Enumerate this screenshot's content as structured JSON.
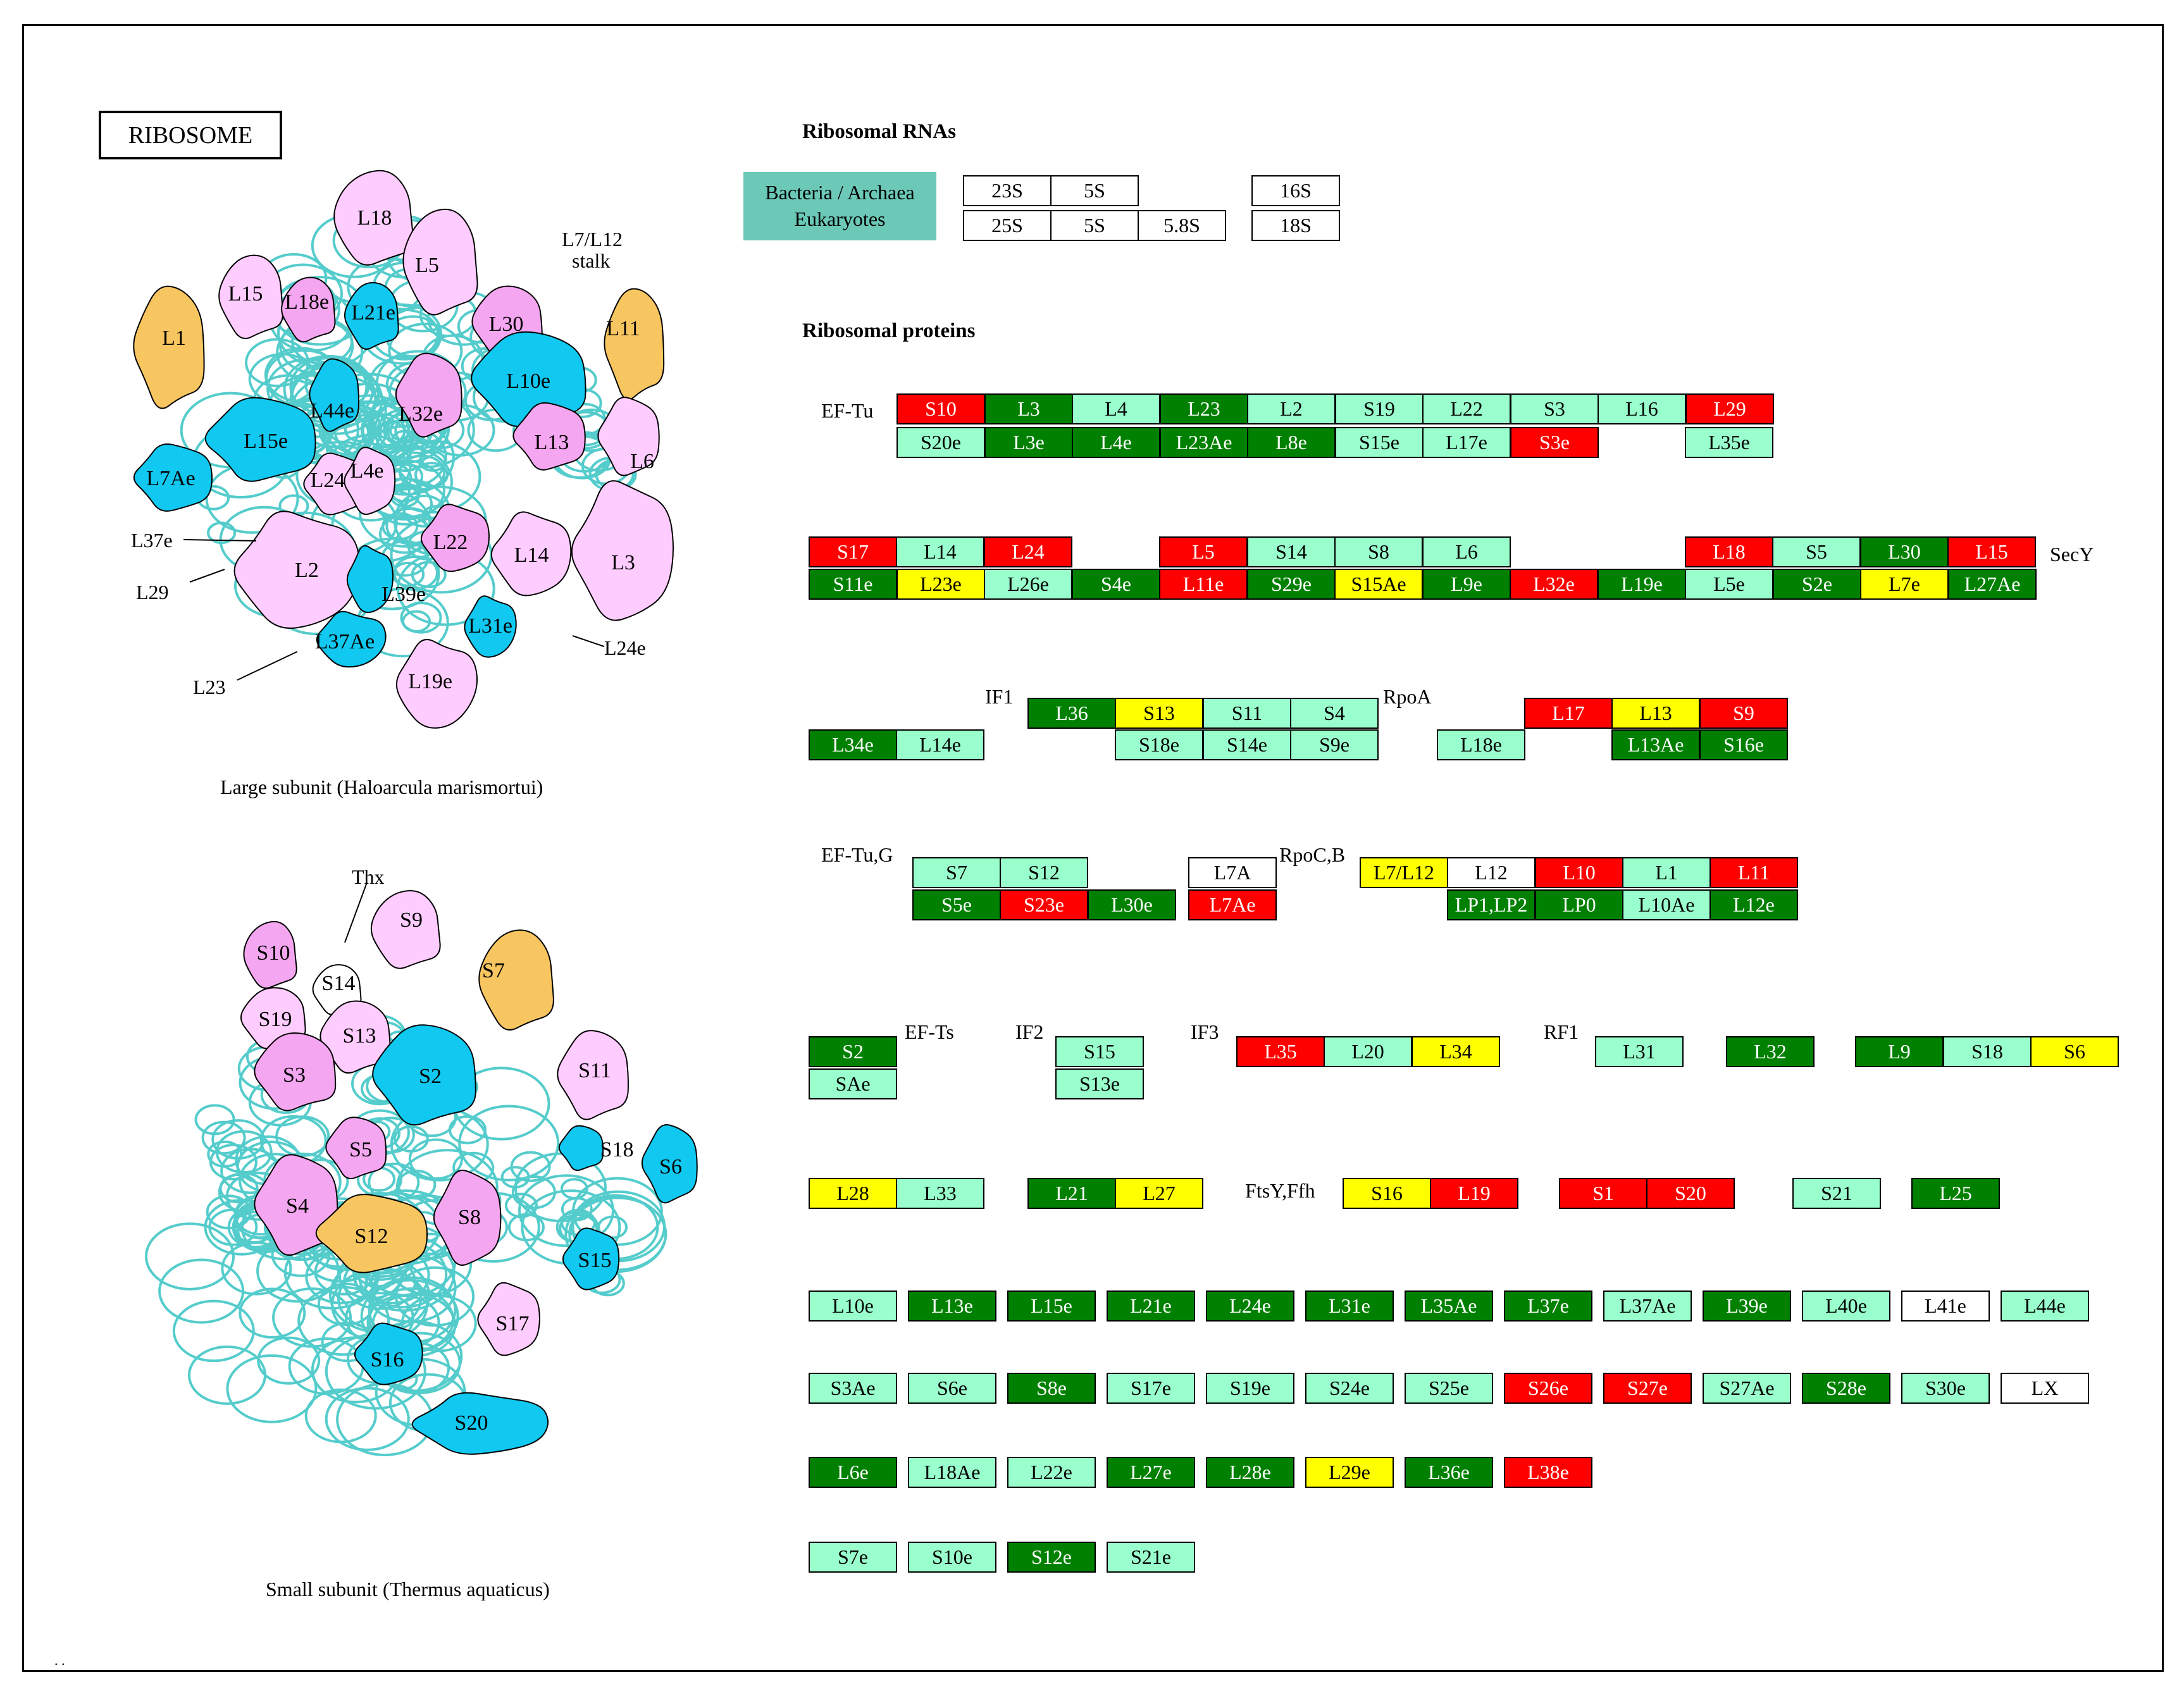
{
  "title": "RIBOSOME",
  "colors": {
    "red": "#ff0000",
    "dark": "#008000",
    "light": "#99ffcc",
    "yellow": "#ffff00",
    "white": "#ffffff",
    "legend": "#6cc9b8",
    "pink": "#ffccff",
    "magenta": "#f5a6f0",
    "blue": "#10c8f0",
    "orange": "#f8c660",
    "thread": "#55cccc"
  },
  "sections": {
    "rna_heading": "Ribosomal RNAs",
    "protein_heading": "Ribosomal proteins"
  },
  "legend": {
    "line1": "Bacteria / Archaea",
    "line2": "Eukaryotes"
  },
  "rna": {
    "bac": [
      {
        "label": "23S",
        "color": "white"
      },
      {
        "label": "5S",
        "color": "white"
      },
      {
        "label": "16S",
        "color": "white"
      }
    ],
    "euk": [
      {
        "label": "25S",
        "color": "white"
      },
      {
        "label": "5S",
        "color": "white"
      },
      {
        "label": "5.8S",
        "color": "white"
      },
      {
        "label": "18S",
        "color": "white"
      }
    ]
  },
  "labels": {
    "ef_tu": "EF-Tu",
    "secy": "SecY",
    "if1": "IF1",
    "rpoa": "RpoA",
    "ef_tu_g": "EF-Tu,G",
    "rpoc_b": "RpoC,B",
    "ef_ts": "EF-Ts",
    "if2": "IF2",
    "if3": "IF3",
    "rf1": "RF1",
    "ftsy_ffh": "FtsY,Ffh",
    "dots": ". ."
  },
  "rows": {
    "r1_top": [
      {
        "label": "S10",
        "color": "red"
      },
      {
        "label": "L3",
        "color": "dark"
      },
      {
        "label": "L4",
        "color": "light"
      },
      {
        "label": "L23",
        "color": "dark"
      },
      {
        "label": "L2",
        "color": "light"
      },
      {
        "label": "S19",
        "color": "light"
      },
      {
        "label": "L22",
        "color": "light"
      },
      {
        "label": "S3",
        "color": "light"
      },
      {
        "label": "L16",
        "color": "light"
      },
      {
        "label": "L29",
        "color": "red"
      }
    ],
    "r1_bot": [
      {
        "label": "S20e",
        "color": "light"
      },
      {
        "label": "L3e",
        "color": "dark"
      },
      {
        "label": "L4e",
        "color": "dark"
      },
      {
        "label": "L23Ae",
        "color": "dark"
      },
      {
        "label": "L8e",
        "color": "dark"
      },
      {
        "label": "S15e",
        "color": "light"
      },
      {
        "label": "L17e",
        "color": "light"
      },
      {
        "label": "S3e",
        "color": "red"
      },
      {
        "label": "L35e",
        "color": "light"
      }
    ],
    "r2_top": [
      {
        "label": "S17",
        "color": "red"
      },
      {
        "label": "L14",
        "color": "light"
      },
      {
        "label": "L24",
        "color": "red"
      },
      {
        "label": "L5",
        "color": "red"
      },
      {
        "label": "S14",
        "color": "light"
      },
      {
        "label": "S8",
        "color": "light"
      },
      {
        "label": "L6",
        "color": "light"
      },
      {
        "label": "L18",
        "color": "red"
      },
      {
        "label": "S5",
        "color": "light"
      },
      {
        "label": "L30",
        "color": "dark"
      },
      {
        "label": "L15",
        "color": "red"
      }
    ],
    "r2_bot": [
      {
        "label": "S11e",
        "color": "dark"
      },
      {
        "label": "L23e",
        "color": "yellow"
      },
      {
        "label": "L26e",
        "color": "light"
      },
      {
        "label": "S4e",
        "color": "dark"
      },
      {
        "label": "L11e",
        "color": "red"
      },
      {
        "label": "S29e",
        "color": "dark"
      },
      {
        "label": "S15Ae",
        "color": "yellow"
      },
      {
        "label": "L9e",
        "color": "dark"
      },
      {
        "label": "L32e",
        "color": "red"
      },
      {
        "label": "L19e",
        "color": "dark"
      },
      {
        "label": "L5e",
        "color": "light"
      },
      {
        "label": "S2e",
        "color": "dark"
      },
      {
        "label": "L7e",
        "color": "yellow"
      },
      {
        "label": "L27Ae",
        "color": "dark"
      }
    ],
    "r3_top": [
      {
        "label": "L36",
        "color": "dark"
      },
      {
        "label": "S13",
        "color": "yellow"
      },
      {
        "label": "S11",
        "color": "light"
      },
      {
        "label": "S4",
        "color": "light"
      },
      {
        "label": "L17",
        "color": "red"
      },
      {
        "label": "L13",
        "color": "yellow"
      },
      {
        "label": "S9",
        "color": "red"
      }
    ],
    "r3_bot": [
      {
        "label": "L34e",
        "color": "dark"
      },
      {
        "label": "L14e",
        "color": "light"
      },
      {
        "label": "S18e",
        "color": "light"
      },
      {
        "label": "S14e",
        "color": "light"
      },
      {
        "label": "S9e",
        "color": "light"
      },
      {
        "label": "L18e",
        "color": "light"
      },
      {
        "label": "L13Ae",
        "color": "dark"
      },
      {
        "label": "S16e",
        "color": "dark"
      }
    ],
    "r4_top": [
      {
        "label": "S7",
        "color": "light"
      },
      {
        "label": "S12",
        "color": "light"
      },
      {
        "label": "L7A",
        "color": "white"
      },
      {
        "label": "L7/L12",
        "color": "yellow"
      },
      {
        "label": "L12",
        "color": "white"
      },
      {
        "label": "L10",
        "color": "red"
      },
      {
        "label": "L1",
        "color": "light"
      },
      {
        "label": "L11",
        "color": "red"
      }
    ],
    "r4_bot": [
      {
        "label": "S5e",
        "color": "dark"
      },
      {
        "label": "S23e",
        "color": "red"
      },
      {
        "label": "L30e",
        "color": "dark"
      },
      {
        "label": "L7Ae",
        "color": "red"
      },
      {
        "label": "LP1,LP2",
        "color": "dark"
      },
      {
        "label": "LP0",
        "color": "dark"
      },
      {
        "label": "L10Ae",
        "color": "light"
      },
      {
        "label": "L12e",
        "color": "dark"
      }
    ],
    "r5": [
      {
        "label": "S2",
        "color": "dark"
      },
      {
        "label": "SAe",
        "color": "light"
      },
      {
        "label": "S15",
        "color": "light"
      },
      {
        "label": "S13e",
        "color": "light"
      },
      {
        "label": "L35",
        "color": "red"
      },
      {
        "label": "L20",
        "color": "light"
      },
      {
        "label": "L34",
        "color": "yellow"
      },
      {
        "label": "L31",
        "color": "light"
      },
      {
        "label": "L32",
        "color": "dark"
      },
      {
        "label": "L9",
        "color": "dark"
      },
      {
        "label": "S18",
        "color": "light"
      },
      {
        "label": "S6",
        "color": "yellow"
      }
    ],
    "r6": [
      {
        "label": "L28",
        "color": "yellow"
      },
      {
        "label": "L33",
        "color": "light"
      },
      {
        "label": "L21",
        "color": "dark"
      },
      {
        "label": "L27",
        "color": "yellow"
      },
      {
        "label": "S16",
        "color": "yellow"
      },
      {
        "label": "L19",
        "color": "red"
      },
      {
        "label": "S1",
        "color": "red"
      },
      {
        "label": "S20",
        "color": "red"
      },
      {
        "label": "S21",
        "color": "light"
      },
      {
        "label": "L25",
        "color": "dark"
      }
    ],
    "r7": [
      {
        "label": "L10e",
        "color": "light"
      },
      {
        "label": "L13e",
        "color": "dark"
      },
      {
        "label": "L15e",
        "color": "dark"
      },
      {
        "label": "L21e",
        "color": "dark"
      },
      {
        "label": "L24e",
        "color": "dark"
      },
      {
        "label": "L31e",
        "color": "dark"
      },
      {
        "label": "L35Ae",
        "color": "dark"
      },
      {
        "label": "L37e",
        "color": "dark"
      },
      {
        "label": "L37Ae",
        "color": "light"
      },
      {
        "label": "L39e",
        "color": "dark"
      },
      {
        "label": "L40e",
        "color": "light"
      },
      {
        "label": "L41e",
        "color": "white"
      },
      {
        "label": "L44e",
        "color": "light"
      }
    ],
    "r8": [
      {
        "label": "S3Ae",
        "color": "light"
      },
      {
        "label": "S6e",
        "color": "light"
      },
      {
        "label": "S8e",
        "color": "dark"
      },
      {
        "label": "S17e",
        "color": "light"
      },
      {
        "label": "S19e",
        "color": "light"
      },
      {
        "label": "S24e",
        "color": "light"
      },
      {
        "label": "S25e",
        "color": "light"
      },
      {
        "label": "S26e",
        "color": "red"
      },
      {
        "label": "S27e",
        "color": "red"
      },
      {
        "label": "S27Ae",
        "color": "light"
      },
      {
        "label": "S28e",
        "color": "dark"
      },
      {
        "label": "S30e",
        "color": "light"
      },
      {
        "label": "LX",
        "color": "white"
      }
    ],
    "r9": [
      {
        "label": "L6e",
        "color": "dark"
      },
      {
        "label": "L18Ae",
        "color": "light"
      },
      {
        "label": "L22e",
        "color": "light"
      },
      {
        "label": "L27e",
        "color": "dark"
      },
      {
        "label": "L28e",
        "color": "dark"
      },
      {
        "label": "L29e",
        "color": "yellow"
      },
      {
        "label": "L36e",
        "color": "dark"
      },
      {
        "label": "L38e",
        "color": "red"
      }
    ],
    "r10": [
      {
        "label": "S7e",
        "color": "light"
      },
      {
        "label": "S10e",
        "color": "light"
      },
      {
        "label": "S12e",
        "color": "dark"
      },
      {
        "label": "S21e",
        "color": "light"
      }
    ]
  },
  "large_subunit": {
    "caption": "Large subunit (Haloarcula marismortui)",
    "proteins": [
      {
        "label": "L18",
        "color": "pink"
      },
      {
        "label": "L5",
        "color": "pink"
      },
      {
        "label": "L15",
        "color": "pink"
      },
      {
        "label": "L18e",
        "color": "magenta"
      },
      {
        "label": "L21e",
        "color": "blue"
      },
      {
        "label": "L30",
        "color": "magenta"
      },
      {
        "label": "L11",
        "color": "orange"
      },
      {
        "label": "L1",
        "color": "orange"
      },
      {
        "label": "L10e",
        "color": "blue"
      },
      {
        "label": "L44e",
        "color": "blue"
      },
      {
        "label": "L32e",
        "color": "magenta"
      },
      {
        "label": "L15e",
        "color": "blue"
      },
      {
        "label": "L13",
        "color": "magenta"
      },
      {
        "label": "L6",
        "color": "pink"
      },
      {
        "label": "L7Ae",
        "color": "blue"
      },
      {
        "label": "L24",
        "color": "pink"
      },
      {
        "label": "L4e",
        "color": "pink"
      },
      {
        "label": "L3",
        "color": "pink"
      },
      {
        "label": "L22",
        "color": "magenta"
      },
      {
        "label": "L14",
        "color": "pink"
      },
      {
        "label": "L2",
        "color": "pink"
      },
      {
        "label": "L39e",
        "color": "blue"
      },
      {
        "label": "L31e",
        "color": "blue"
      },
      {
        "label": "L37Ae",
        "color": "blue"
      },
      {
        "label": "L19e",
        "color": "pink"
      }
    ],
    "callouts": [
      "L7/L12",
      "stalk",
      "L37e",
      "L29",
      "L23",
      "L24e"
    ]
  },
  "small_subunit": {
    "caption": "Small subunit (Thermus aquaticus)",
    "proteins": [
      {
        "label": "S10",
        "color": "magenta"
      },
      {
        "label": "S9",
        "color": "pink"
      },
      {
        "label": "S7",
        "color": "orange"
      },
      {
        "label": "S14",
        "color": "white"
      },
      {
        "label": "S19",
        "color": "pink"
      },
      {
        "label": "S13",
        "color": "pink"
      },
      {
        "label": "S3",
        "color": "magenta"
      },
      {
        "label": "S2",
        "color": "blue"
      },
      {
        "label": "S11",
        "color": "pink"
      },
      {
        "label": "S5",
        "color": "magenta"
      },
      {
        "label": "S18",
        "color": "blue"
      },
      {
        "label": "S6",
        "color": "blue"
      },
      {
        "label": "S4",
        "color": "magenta"
      },
      {
        "label": "S12",
        "color": "orange"
      },
      {
        "label": "S8",
        "color": "magenta"
      },
      {
        "label": "S15",
        "color": "blue"
      },
      {
        "label": "S17",
        "color": "pink"
      },
      {
        "label": "S16",
        "color": "blue"
      },
      {
        "label": "S20",
        "color": "blue"
      }
    ],
    "callouts": [
      "Thx"
    ]
  }
}
